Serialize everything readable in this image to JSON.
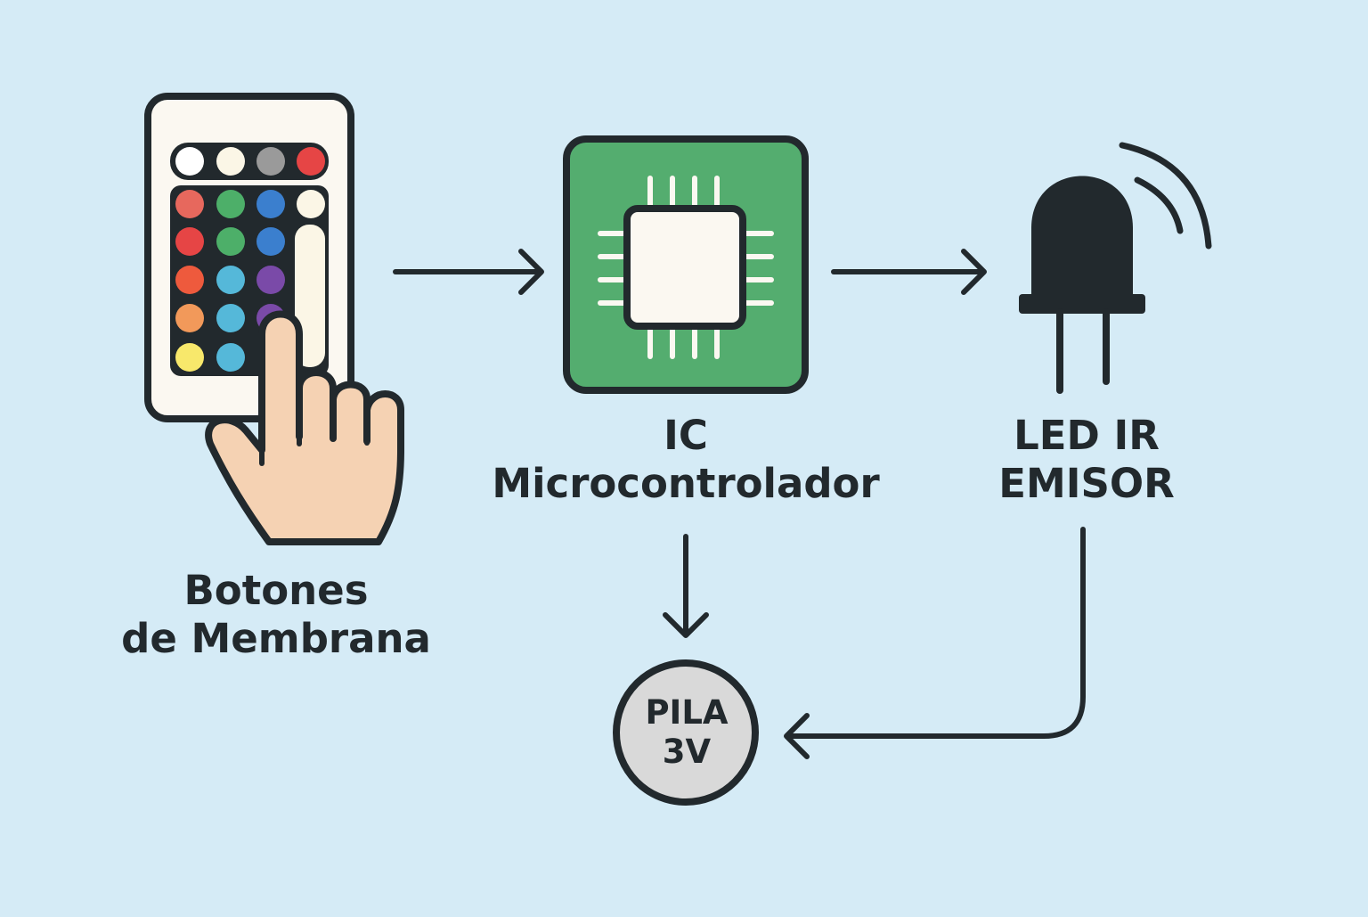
{
  "nodes": {
    "botones": {
      "line1": "Botones",
      "line2": "de Membrana"
    },
    "ic": {
      "line1": "IC",
      "line2": "Microcontrolador"
    },
    "led": {
      "line1": "LED IR",
      "line2": "EMISOR"
    },
    "pila": {
      "line1": "PILA",
      "line2": "3V"
    }
  },
  "colors": {
    "background": "#d5ebf6",
    "outline": "#22292d",
    "chip_board": "#54ad6f",
    "remote_body": "#fbf8f1",
    "remote_panel": "#22292d",
    "hand_skin": "#f5d2b3",
    "battery_fill": "#d9d9d9"
  },
  "icons": [
    "remote-control-icon",
    "pointing-hand-icon",
    "microchip-icon",
    "ir-led-icon",
    "signal-waves-icon",
    "battery-icon"
  ],
  "remote_buttons": {
    "top_row": [
      "#ffffff",
      "#fbf6e6",
      "#9a9a9a",
      "#e64545"
    ],
    "grid_rows": [
      [
        "#e7685d",
        "#4daf69",
        "#3b7fce",
        "#fbf6e6"
      ],
      [
        "#e64545",
        "#4daf69",
        "#3b7fce"
      ],
      [
        "#ee5a3d",
        "#55b8d9",
        "#7a4aa8"
      ],
      [
        "#f2995a",
        "#55b8d9",
        "#7a4aa8"
      ],
      [
        "#f8e86b",
        "#55b8d9"
      ]
    ]
  },
  "edges": [
    {
      "from": "botones",
      "to": "ic"
    },
    {
      "from": "ic",
      "to": "led"
    },
    {
      "from": "ic",
      "to": "pila"
    },
    {
      "from": "led",
      "to": "pila"
    }
  ]
}
